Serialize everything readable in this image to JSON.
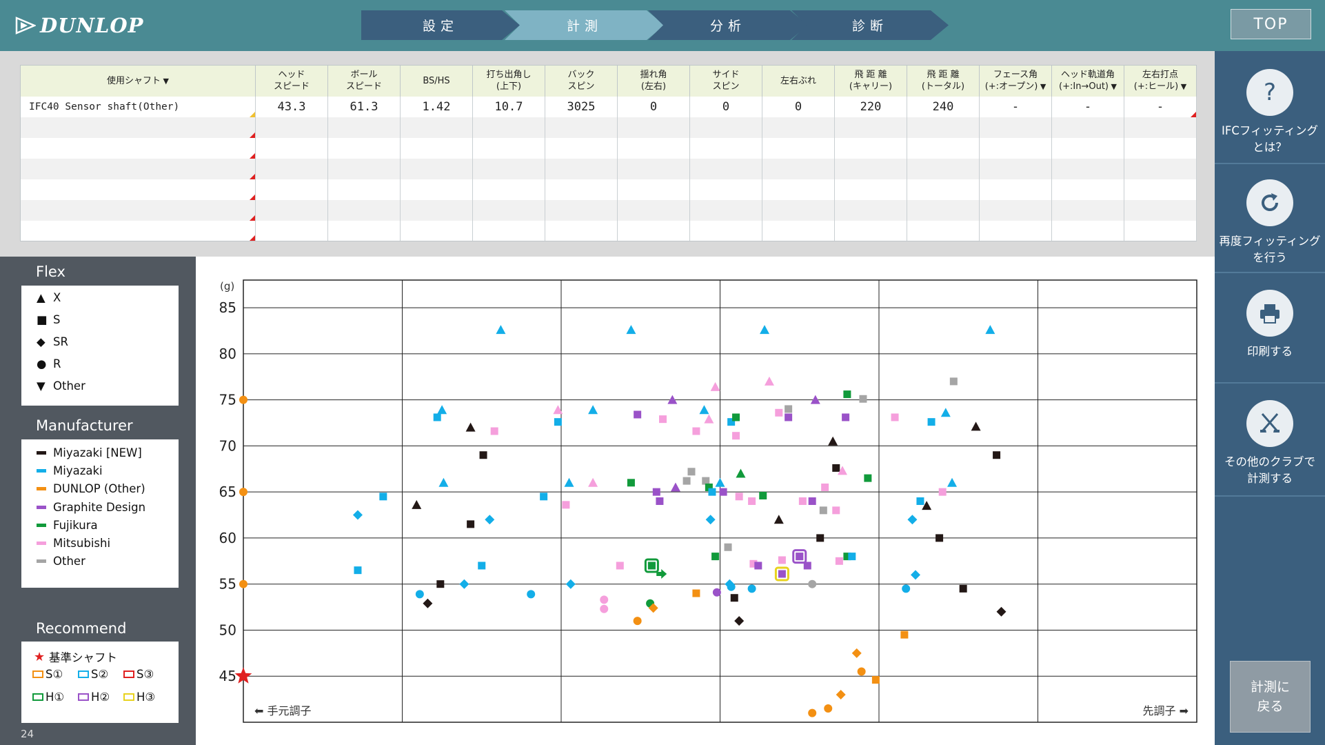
{
  "brand": {
    "name": "DUNLOP"
  },
  "steps": [
    {
      "label": "設定",
      "active": false
    },
    {
      "label": "計測",
      "active": true
    },
    {
      "label": "分析",
      "active": false
    },
    {
      "label": "診断",
      "active": false
    }
  ],
  "top_button": "TOP",
  "sidebar": {
    "items": [
      {
        "icon": "question-icon",
        "line1": "IFCフィッティング",
        "line2": "とは？"
      },
      {
        "icon": "refresh-icon",
        "line1": "再度フィッティング",
        "line2": "を行う"
      },
      {
        "icon": "printer-icon",
        "line1": "印刷する",
        "line2": ""
      },
      {
        "icon": "golf-clubs-icon",
        "line1": "その他のクラブで",
        "line2": "計測する"
      }
    ],
    "back_line1": "計測に",
    "back_line2": "戻る"
  },
  "table": {
    "headers": [
      {
        "l1": "使用シャフト",
        "l2": "",
        "arrow": true
      },
      {
        "l1": "ヘッド",
        "l2": "スピード",
        "arrow": false
      },
      {
        "l1": "ボール",
        "l2": "スピード",
        "arrow": false
      },
      {
        "l1": "BS/HS",
        "l2": "",
        "arrow": false
      },
      {
        "l1": "打ち出角し",
        "l2": "(上下)",
        "arrow": false
      },
      {
        "l1": "バック",
        "l2": "スピン",
        "arrow": false
      },
      {
        "l1": "揺れ角",
        "l2": "(左右)",
        "arrow": false
      },
      {
        "l1": "サイド",
        "l2": "スピン",
        "arrow": false
      },
      {
        "l1": "左右ぶれ",
        "l2": "",
        "arrow": false
      },
      {
        "l1": "飛 距 離",
        "l2": "(キャリー)",
        "arrow": false
      },
      {
        "l1": "飛 距 離",
        "l2": "(トータル)",
        "arrow": false
      },
      {
        "l1": "フェース角",
        "l2": "(+:オープン)",
        "arrow": true
      },
      {
        "l1": "ヘッド軌道角",
        "l2": "(+:In→Out)",
        "arrow": true
      },
      {
        "l1": "左右打点",
        "l2": "(+:ヒール)",
        "arrow": true
      }
    ],
    "rows": [
      [
        "IFC40 Sensor shaft(Other)",
        "43.3",
        "61.3",
        "1.42",
        "10.7",
        "3025",
        "0",
        "0",
        "0",
        "220",
        "240",
        "-",
        "-",
        "-"
      ],
      [
        "",
        "",
        "",
        "",
        "",
        "",
        "",
        "",
        "",
        "",
        "",
        "",
        "",
        ""
      ],
      [
        "",
        "",
        "",
        "",
        "",
        "",
        "",
        "",
        "",
        "",
        "",
        "",
        "",
        ""
      ],
      [
        "",
        "",
        "",
        "",
        "",
        "",
        "",
        "",
        "",
        "",
        "",
        "",
        "",
        ""
      ],
      [
        "",
        "",
        "",
        "",
        "",
        "",
        "",
        "",
        "",
        "",
        "",
        "",
        "",
        ""
      ],
      [
        "",
        "",
        "",
        "",
        "",
        "",
        "",
        "",
        "",
        "",
        "",
        "",
        "",
        ""
      ],
      [
        "",
        "",
        "",
        "",
        "",
        "",
        "",
        "",
        "",
        "",
        "",
        "",
        "",
        ""
      ]
    ]
  },
  "legend": {
    "flex_title": "Flex",
    "flex": [
      {
        "shape": "triangle",
        "label": "X"
      },
      {
        "shape": "square",
        "label": "S"
      },
      {
        "shape": "diamond",
        "label": "SR"
      },
      {
        "shape": "circle",
        "label": "R"
      },
      {
        "shape": "down-triangle",
        "label": "Other"
      }
    ],
    "manufacturer_title": "Manufacturer",
    "manufacturers": [
      {
        "label": "Miyazaki [NEW]",
        "color": "#231816"
      },
      {
        "label": "Miyazaki",
        "color": "#13aee8"
      },
      {
        "label": "DUNLOP (Other)",
        "color": "#f39013"
      },
      {
        "label": "Graphite Design",
        "color": "#9a52c8"
      },
      {
        "label": "Fujikura",
        "color": "#119a3b"
      },
      {
        "label": "Mitsubishi",
        "color": "#f59fdc"
      },
      {
        "label": "Other",
        "color": "#a5a5a5"
      }
    ],
    "recommend_title": "Recommend",
    "baseline_label": "基準シャフト",
    "recommend": [
      {
        "label": "S①",
        "color": "#f39013"
      },
      {
        "label": "S②",
        "color": "#13aee8"
      },
      {
        "label": "S③",
        "color": "#e02020"
      },
      {
        "label": "H①",
        "color": "#119a3b"
      },
      {
        "label": "H②",
        "color": "#9a52c8"
      },
      {
        "label": "H③",
        "color": "#e8d21e"
      }
    ]
  },
  "page_number": "24",
  "chart_data": {
    "type": "scatter",
    "ylabel": "(g)",
    "left_label": "⬅ 手元調子",
    "right_label": "先調子 ➡",
    "xlim": [
      0,
      6
    ],
    "ylim": [
      40,
      90
    ],
    "yticks": [
      45,
      50,
      55,
      60,
      65,
      70,
      75,
      80,
      85
    ],
    "grid": true,
    "colors": {
      "k": "#231816",
      "b": "#13aee8",
      "o": "#f39013",
      "p": "#9a52c8",
      "g": "#119a3b",
      "m": "#f59fdc",
      "gr": "#a5a5a5"
    },
    "baseline_point": {
      "x": 0,
      "y": 45
    },
    "axis_markers": [
      75,
      65,
      55
    ],
    "points": [
      {
        "x": 1.62,
        "y": 82.6,
        "s": "t",
        "c": "b"
      },
      {
        "x": 2.44,
        "y": 82.6,
        "s": "t",
        "c": "b"
      },
      {
        "x": 3.28,
        "y": 82.6,
        "s": "t",
        "c": "b"
      },
      {
        "x": 4.7,
        "y": 82.6,
        "s": "t",
        "c": "b"
      },
      {
        "x": 1.25,
        "y": 73.9,
        "s": "t",
        "c": "b"
      },
      {
        "x": 1.22,
        "y": 73.1,
        "s": "q",
        "c": "b"
      },
      {
        "x": 1.43,
        "y": 72.0,
        "s": "t",
        "c": "k"
      },
      {
        "x": 1.58,
        "y": 71.6,
        "s": "q",
        "c": "m"
      },
      {
        "x": 1.51,
        "y": 69.0,
        "s": "q",
        "c": "k"
      },
      {
        "x": 1.26,
        "y": 66.0,
        "s": "t",
        "c": "b"
      },
      {
        "x": 1.09,
        "y": 63.6,
        "s": "t",
        "c": "k"
      },
      {
        "x": 0.88,
        "y": 64.5,
        "s": "q",
        "c": "b"
      },
      {
        "x": 0.72,
        "y": 62.5,
        "s": "d",
        "c": "b"
      },
      {
        "x": 1.43,
        "y": 61.5,
        "s": "q",
        "c": "k"
      },
      {
        "x": 1.55,
        "y": 62.0,
        "s": "d",
        "c": "b"
      },
      {
        "x": 0.72,
        "y": 56.5,
        "s": "q",
        "c": "b"
      },
      {
        "x": 1.5,
        "y": 57.0,
        "s": "q",
        "c": "b"
      },
      {
        "x": 1.24,
        "y": 55.0,
        "s": "q",
        "c": "k"
      },
      {
        "x": 1.39,
        "y": 55.0,
        "s": "d",
        "c": "b"
      },
      {
        "x": 1.11,
        "y": 53.9,
        "s": "c",
        "c": "b"
      },
      {
        "x": 1.16,
        "y": 52.9,
        "s": "d",
        "c": "k"
      },
      {
        "x": 1.81,
        "y": 53.9,
        "s": "c",
        "c": "b"
      },
      {
        "x": 2.06,
        "y": 55.0,
        "s": "d",
        "c": "b"
      },
      {
        "x": 2.05,
        "y": 66.0,
        "s": "t",
        "c": "b"
      },
      {
        "x": 1.89,
        "y": 64.5,
        "s": "q",
        "c": "b"
      },
      {
        "x": 2.03,
        "y": 63.6,
        "s": "q",
        "c": "m"
      },
      {
        "x": 1.98,
        "y": 72.6,
        "s": "q",
        "c": "b"
      },
      {
        "x": 1.98,
        "y": 73.9,
        "s": "t",
        "c": "m"
      },
      {
        "x": 2.2,
        "y": 73.9,
        "s": "t",
        "c": "b"
      },
      {
        "x": 2.2,
        "y": 66.0,
        "s": "t",
        "c": "m"
      },
      {
        "x": 2.37,
        "y": 57.0,
        "s": "q",
        "c": "m"
      },
      {
        "x": 2.27,
        "y": 53.3,
        "s": "c",
        "c": "m"
      },
      {
        "x": 2.27,
        "y": 52.3,
        "s": "c",
        "c": "m"
      },
      {
        "x": 2.44,
        "y": 66.0,
        "s": "q",
        "c": "g"
      },
      {
        "x": 2.48,
        "y": 73.4,
        "s": "q",
        "c": "p"
      },
      {
        "x": 2.57,
        "y": 57.0,
        "s": "q",
        "c": "b"
      },
      {
        "x": 2.57,
        "y": 57.0,
        "s": "q",
        "c": "g"
      },
      {
        "x": 2.63,
        "y": 56.1,
        "s": "r",
        "c": "g"
      },
      {
        "x": 2.6,
        "y": 65.0,
        "s": "q",
        "c": "p"
      },
      {
        "x": 2.62,
        "y": 64.0,
        "s": "q",
        "c": "p"
      },
      {
        "x": 2.7,
        "y": 75.0,
        "s": "t",
        "c": "p"
      },
      {
        "x": 2.64,
        "y": 72.9,
        "s": "q",
        "c": "m"
      },
      {
        "x": 2.72,
        "y": 65.5,
        "s": "t",
        "c": "p"
      },
      {
        "x": 2.56,
        "y": 52.9,
        "s": "c",
        "c": "g"
      },
      {
        "x": 2.48,
        "y": 51.0,
        "s": "c",
        "c": "o"
      },
      {
        "x": 2.58,
        "y": 52.4,
        "s": "d",
        "c": "o"
      },
      {
        "x": 2.82,
        "y": 67.2,
        "s": "q",
        "c": "gr"
      },
      {
        "x": 2.79,
        "y": 66.2,
        "s": "q",
        "c": "gr"
      },
      {
        "x": 2.85,
        "y": 71.6,
        "s": "q",
        "c": "m"
      },
      {
        "x": 2.9,
        "y": 73.9,
        "s": "t",
        "c": "b"
      },
      {
        "x": 2.93,
        "y": 72.9,
        "s": "t",
        "c": "m"
      },
      {
        "x": 2.97,
        "y": 76.4,
        "s": "t",
        "c": "m"
      },
      {
        "x": 2.91,
        "y": 66.2,
        "s": "q",
        "c": "gr"
      },
      {
        "x": 2.93,
        "y": 65.5,
        "s": "q",
        "c": "g"
      },
      {
        "x": 2.95,
        "y": 65.0,
        "s": "q",
        "c": "b"
      },
      {
        "x": 3.0,
        "y": 66.0,
        "s": "t",
        "c": "b"
      },
      {
        "x": 3.02,
        "y": 65.0,
        "s": "q",
        "c": "p"
      },
      {
        "x": 2.94,
        "y": 62.0,
        "s": "d",
        "c": "b"
      },
      {
        "x": 2.97,
        "y": 58.0,
        "s": "q",
        "c": "g"
      },
      {
        "x": 3.05,
        "y": 59.0,
        "s": "q",
        "c": "gr"
      },
      {
        "x": 2.85,
        "y": 54.0,
        "s": "q",
        "c": "o"
      },
      {
        "x": 2.98,
        "y": 54.1,
        "s": "c",
        "c": "p"
      },
      {
        "x": 3.07,
        "y": 54.7,
        "s": "c",
        "c": "b"
      },
      {
        "x": 3.06,
        "y": 55.0,
        "s": "d",
        "c": "b"
      },
      {
        "x": 3.09,
        "y": 53.5,
        "s": "q",
        "c": "k"
      },
      {
        "x": 3.12,
        "y": 51.0,
        "s": "d",
        "c": "k"
      },
      {
        "x": 3.07,
        "y": 72.6,
        "s": "q",
        "c": "b"
      },
      {
        "x": 3.1,
        "y": 73.1,
        "s": "q",
        "c": "g"
      },
      {
        "x": 3.1,
        "y": 71.1,
        "s": "q",
        "c": "m"
      },
      {
        "x": 3.13,
        "y": 67.0,
        "s": "t",
        "c": "g"
      },
      {
        "x": 3.12,
        "y": 64.5,
        "s": "q",
        "c": "m"
      },
      {
        "x": 3.2,
        "y": 64.0,
        "s": "q",
        "c": "m"
      },
      {
        "x": 3.27,
        "y": 64.6,
        "s": "q",
        "c": "g"
      },
      {
        "x": 3.21,
        "y": 57.2,
        "s": "q",
        "c": "m"
      },
      {
        "x": 3.24,
        "y": 57.0,
        "s": "q",
        "c": "p"
      },
      {
        "x": 3.2,
        "y": 54.5,
        "s": "c",
        "c": "b"
      },
      {
        "x": 3.31,
        "y": 77.0,
        "s": "t",
        "c": "m"
      },
      {
        "x": 3.37,
        "y": 62.0,
        "s": "t",
        "c": "k"
      },
      {
        "x": 3.37,
        "y": 73.6,
        "s": "q",
        "c": "m"
      },
      {
        "x": 3.43,
        "y": 74.0,
        "s": "q",
        "c": "gr"
      },
      {
        "x": 3.43,
        "y": 73.1,
        "s": "q",
        "c": "p"
      },
      {
        "x": 3.39,
        "y": 57.6,
        "s": "q",
        "c": "m"
      },
      {
        "x": 3.39,
        "y": 56.1,
        "s": "q",
        "c": "p"
      },
      {
        "x": 3.5,
        "y": 58.0,
        "s": "q",
        "c": "gr"
      },
      {
        "x": 3.5,
        "y": 58.0,
        "s": "q",
        "c": "p"
      },
      {
        "x": 3.55,
        "y": 57.0,
        "s": "q",
        "c": "p"
      },
      {
        "x": 3.52,
        "y": 64.0,
        "s": "q",
        "c": "m"
      },
      {
        "x": 3.58,
        "y": 64.0,
        "s": "q",
        "c": "p"
      },
      {
        "x": 3.6,
        "y": 75.0,
        "s": "t",
        "c": "p"
      },
      {
        "x": 3.66,
        "y": 65.5,
        "s": "q",
        "c": "m"
      },
      {
        "x": 3.63,
        "y": 60.0,
        "s": "q",
        "c": "k"
      },
      {
        "x": 3.65,
        "y": 63.0,
        "s": "q",
        "c": "gr"
      },
      {
        "x": 3.58,
        "y": 55.0,
        "s": "c",
        "c": "gr"
      },
      {
        "x": 3.73,
        "y": 63.0,
        "s": "q",
        "c": "m"
      },
      {
        "x": 3.71,
        "y": 70.5,
        "s": "t",
        "c": "k"
      },
      {
        "x": 3.73,
        "y": 67.6,
        "s": "q",
        "c": "k"
      },
      {
        "x": 3.77,
        "y": 67.3,
        "s": "t",
        "c": "m"
      },
      {
        "x": 3.79,
        "y": 73.1,
        "s": "q",
        "c": "p"
      },
      {
        "x": 3.75,
        "y": 57.5,
        "s": "q",
        "c": "m"
      },
      {
        "x": 3.8,
        "y": 58.0,
        "s": "q",
        "c": "g"
      },
      {
        "x": 3.83,
        "y": 58.0,
        "s": "q",
        "c": "b"
      },
      {
        "x": 3.8,
        "y": 75.6,
        "s": "q",
        "c": "g"
      },
      {
        "x": 3.9,
        "y": 75.1,
        "s": "q",
        "c": "gr"
      },
      {
        "x": 3.93,
        "y": 66.5,
        "s": "q",
        "c": "g"
      },
      {
        "x": 3.86,
        "y": 47.5,
        "s": "d",
        "c": "o"
      },
      {
        "x": 3.89,
        "y": 45.5,
        "s": "c",
        "c": "o"
      },
      {
        "x": 3.76,
        "y": 43.0,
        "s": "d",
        "c": "o"
      },
      {
        "x": 3.68,
        "y": 41.5,
        "s": "c",
        "c": "o"
      },
      {
        "x": 3.58,
        "y": 41.0,
        "s": "c",
        "c": "o"
      },
      {
        "x": 3.98,
        "y": 44.6,
        "s": "q",
        "c": "o"
      },
      {
        "x": 4.1,
        "y": 73.1,
        "s": "q",
        "c": "m"
      },
      {
        "x": 4.16,
        "y": 49.5,
        "s": "q",
        "c": "o"
      },
      {
        "x": 4.17,
        "y": 54.5,
        "s": "c",
        "c": "b"
      },
      {
        "x": 4.21,
        "y": 62.0,
        "s": "d",
        "c": "b"
      },
      {
        "x": 4.23,
        "y": 56.0,
        "s": "d",
        "c": "b"
      },
      {
        "x": 4.26,
        "y": 64.0,
        "s": "q",
        "c": "b"
      },
      {
        "x": 4.3,
        "y": 63.5,
        "s": "t",
        "c": "k"
      },
      {
        "x": 4.38,
        "y": 60.0,
        "s": "q",
        "c": "k"
      },
      {
        "x": 4.4,
        "y": 65.0,
        "s": "q",
        "c": "m"
      },
      {
        "x": 4.46,
        "y": 66.0,
        "s": "t",
        "c": "b"
      },
      {
        "x": 4.33,
        "y": 72.6,
        "s": "q",
        "c": "b"
      },
      {
        "x": 4.42,
        "y": 73.6,
        "s": "t",
        "c": "b"
      },
      {
        "x": 4.53,
        "y": 54.5,
        "s": "q",
        "c": "k"
      },
      {
        "x": 4.61,
        "y": 72.1,
        "s": "t",
        "c": "k"
      },
      {
        "x": 4.47,
        "y": 77.0,
        "s": "q",
        "c": "gr"
      },
      {
        "x": 4.74,
        "y": 69.0,
        "s": "q",
        "c": "k"
      },
      {
        "x": 4.77,
        "y": 52.0,
        "s": "d",
        "c": "k"
      }
    ],
    "highlights": [
      {
        "x": 2.57,
        "y": 57.0,
        "c": "g"
      },
      {
        "x": 3.39,
        "y": 56.1,
        "c": "y"
      },
      {
        "x": 3.5,
        "y": 58.0,
        "c": "p"
      }
    ]
  }
}
